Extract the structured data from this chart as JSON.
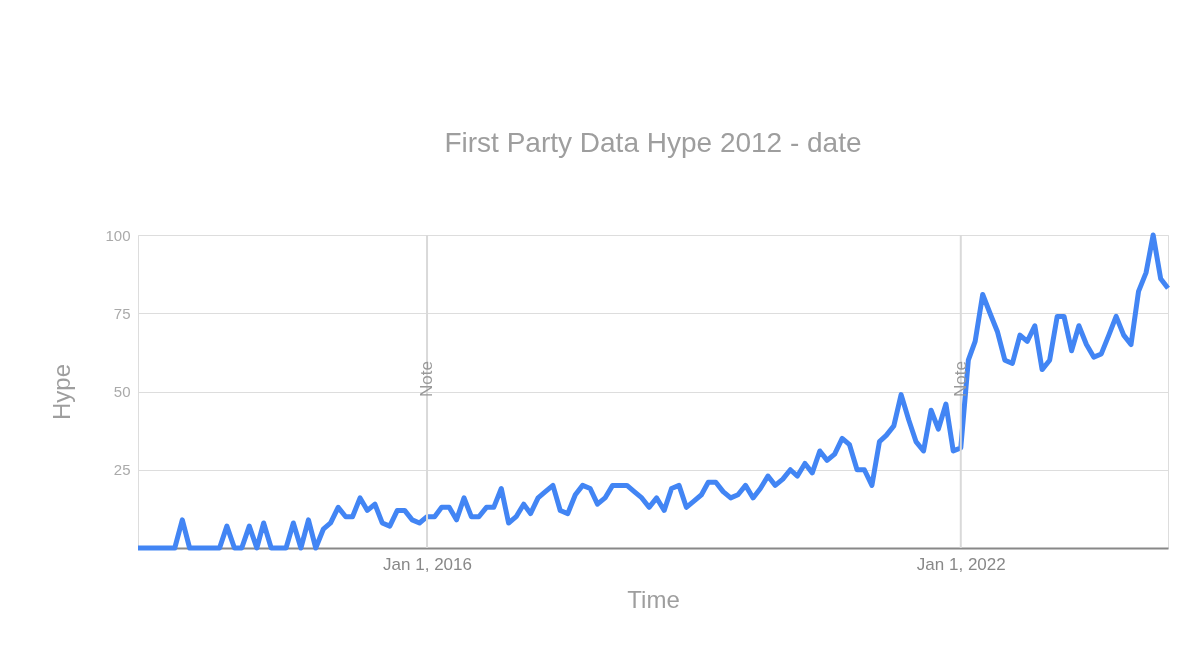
{
  "chart_data": {
    "type": "line",
    "title": "First Party Data Hype 2012 - date",
    "xlabel": "Time",
    "ylabel": "Hype",
    "x": [
      "2012-10",
      "2012-11",
      "2012-12",
      "2013-01",
      "2013-02",
      "2013-03",
      "2013-04",
      "2013-05",
      "2013-06",
      "2013-07",
      "2013-08",
      "2013-09",
      "2013-10",
      "2013-11",
      "2013-12",
      "2014-01",
      "2014-02",
      "2014-03",
      "2014-04",
      "2014-05",
      "2014-06",
      "2014-07",
      "2014-08",
      "2014-09",
      "2014-10",
      "2014-11",
      "2014-12",
      "2015-01",
      "2015-02",
      "2015-03",
      "2015-04",
      "2015-05",
      "2015-06",
      "2015-07",
      "2015-08",
      "2015-09",
      "2015-10",
      "2015-11",
      "2015-12",
      "2016-01",
      "2016-02",
      "2016-03",
      "2016-04",
      "2016-05",
      "2016-06",
      "2016-07",
      "2016-08",
      "2016-09",
      "2016-10",
      "2016-11",
      "2016-12",
      "2017-01",
      "2017-02",
      "2017-03",
      "2017-04",
      "2017-05",
      "2017-06",
      "2017-07",
      "2017-08",
      "2017-09",
      "2017-10",
      "2017-11",
      "2017-12",
      "2018-01",
      "2018-02",
      "2018-03",
      "2018-04",
      "2018-05",
      "2018-06",
      "2018-07",
      "2018-08",
      "2018-09",
      "2018-10",
      "2018-11",
      "2018-12",
      "2019-01",
      "2019-02",
      "2019-03",
      "2019-04",
      "2019-05",
      "2019-06",
      "2019-07",
      "2019-08",
      "2019-09",
      "2019-10",
      "2019-11",
      "2019-12",
      "2020-01",
      "2020-02",
      "2020-03",
      "2020-04",
      "2020-05",
      "2020-06",
      "2020-07",
      "2020-08",
      "2020-09",
      "2020-10",
      "2020-11",
      "2020-12",
      "2021-01",
      "2021-02",
      "2021-03",
      "2021-04",
      "2021-05",
      "2021-06",
      "2021-07",
      "2021-08",
      "2021-09",
      "2021-10",
      "2021-11",
      "2021-12",
      "2022-01",
      "2022-02",
      "2022-03",
      "2022-04",
      "2022-05",
      "2022-06",
      "2022-07",
      "2022-08",
      "2022-09",
      "2022-10",
      "2022-11",
      "2022-12",
      "2023-01",
      "2023-02",
      "2023-03",
      "2023-04",
      "2023-05",
      "2023-06",
      "2023-07",
      "2023-08",
      "2023-09",
      "2023-10",
      "2023-11",
      "2023-12",
      "2024-01",
      "2024-02",
      "2024-03",
      "2024-04",
      "2024-05"
    ],
    "series": [
      {
        "color": "#4285f4",
        "values": [
          0,
          0,
          0,
          0,
          0,
          0,
          9,
          0,
          0,
          0,
          0,
          0,
          7,
          0,
          0,
          7,
          0,
          8,
          0,
          0,
          0,
          8,
          0,
          9,
          0,
          6,
          8,
          13,
          10,
          10,
          16,
          12,
          14,
          8,
          7,
          12,
          12,
          9,
          8,
          10,
          10,
          13,
          13,
          9,
          16,
          10,
          10,
          13,
          13,
          19,
          8,
          10,
          14,
          11,
          16,
          18,
          20,
          12,
          11,
          17,
          20,
          19,
          14,
          16,
          20,
          20,
          20,
          18,
          16,
          13,
          16,
          12,
          19,
          20,
          13,
          15,
          17,
          21,
          21,
          18,
          16,
          17,
          20,
          16,
          19,
          23,
          20,
          22,
          25,
          23,
          27,
          24,
          31,
          28,
          30,
          35,
          33,
          25,
          25,
          20,
          34,
          36,
          39,
          49,
          41,
          34,
          31,
          44,
          38,
          46,
          31,
          32,
          60,
          66,
          81,
          75,
          69,
          60,
          59,
          68,
          66,
          71,
          57,
          60,
          74,
          74,
          63,
          71,
          65,
          61,
          62,
          68,
          74,
          68,
          65,
          82,
          88,
          100,
          86,
          83
        ]
      }
    ],
    "xlim": [
      "2012-10",
      "2024-05"
    ],
    "xticks": [
      {
        "value": "2016-01",
        "label": "Jan 1, 2016"
      },
      {
        "value": "2022-01",
        "label": "Jan 1, 2022"
      }
    ],
    "ylim": [
      0,
      100
    ],
    "yticks": [
      25,
      50,
      75,
      100
    ],
    "ref_lines": [
      {
        "axis": "x",
        "value": "2016-01",
        "label": "Note",
        "color": "#d9d9d9"
      },
      {
        "axis": "x",
        "value": "2022-01",
        "label": "Note",
        "color": "#d9d9d9"
      }
    ],
    "grid": "y",
    "marker": "none",
    "line_style": "solid"
  }
}
